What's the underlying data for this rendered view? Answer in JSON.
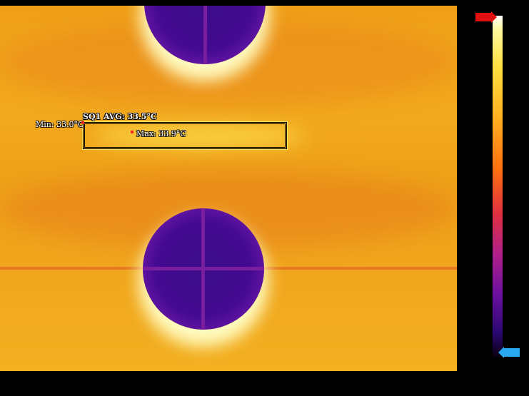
{
  "roi": {
    "title": "SQ1 AVG: 33.5°C",
    "min_label": "Min: 33.0°C",
    "max_label": "Max: 33.9°C"
  },
  "color_scale": {
    "max_value": "",
    "min_value": "",
    "palette": "ironbow",
    "max_flag_color": "#e01010",
    "min_flag_color": "#2aa8f0"
  }
}
